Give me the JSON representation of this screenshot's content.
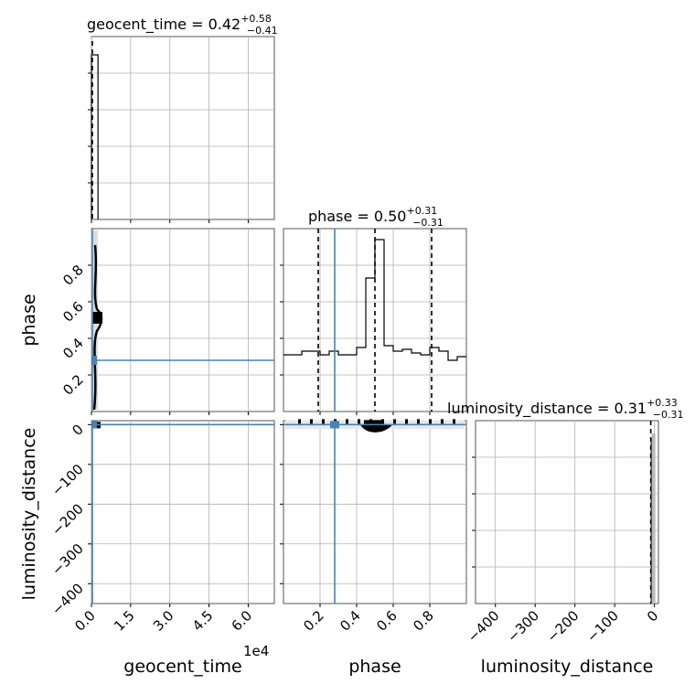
{
  "chart_data": {
    "type": "corner",
    "parameters": [
      "geocent_time",
      "phase",
      "luminosity_distance"
    ],
    "titles": {
      "geocent_time": {
        "name": "geocent_time",
        "median": "0.42",
        "plus": "+0.58",
        "minus": "−0.41"
      },
      "phase": {
        "name": "phase",
        "median": "0.50",
        "plus": "+0.31",
        "minus": "−0.31"
      },
      "luminosity_distance": {
        "name": "luminosity_distance",
        "median": "0.31",
        "plus": "+0.33",
        "minus": "−0.31"
      }
    },
    "truths": {
      "geocent_time": 0,
      "phase": 0.28,
      "luminosity_distance": 0
    },
    "axes": {
      "geocent_time": {
        "label": "geocent_time",
        "lim": [
          0,
          70000
        ],
        "ticks": [
          0,
          15000,
          30000,
          45000,
          60000
        ],
        "tick_labels": [
          "0.0",
          "1.5",
          "3.0",
          "4.5",
          "6.0"
        ],
        "offset_label": "1e4"
      },
      "phase": {
        "label": "phase",
        "lim": [
          0,
          1
        ],
        "ticks": [
          0.2,
          0.4,
          0.6,
          0.8
        ],
        "tick_labels": [
          "0.2",
          "0.4",
          "0.6",
          "0.8"
        ]
      },
      "luminosity_distance": {
        "label": "luminosity_distance",
        "lim": [
          -450,
          10
        ],
        "ticks": [
          -400,
          -300,
          -200,
          -100,
          0
        ],
        "tick_labels": [
          "−400",
          "−300",
          "−200",
          "−100",
          "0"
        ]
      }
    },
    "hist_phase": {
      "bin_edges": [
        0,
        0.05,
        0.1,
        0.15,
        0.2,
        0.25,
        0.3,
        0.35,
        0.4,
        0.45,
        0.5,
        0.55,
        0.6,
        0.65,
        0.7,
        0.75,
        0.8,
        0.85,
        0.9,
        0.95,
        1.0
      ],
      "counts": [
        0.31,
        0.31,
        0.33,
        0.33,
        0.31,
        0.33,
        0.31,
        0.31,
        0.35,
        0.73,
        0.94,
        0.36,
        0.33,
        0.34,
        0.32,
        0.31,
        0.35,
        0.33,
        0.28,
        0.3
      ],
      "quantiles": [
        0.19,
        0.5,
        0.81
      ]
    },
    "hist_geocent_time": {
      "bin_edges": [
        0,
        2500
      ],
      "counts": [
        1.0
      ]
    },
    "hist_luminosity_distance": {
      "bin_edges": [
        -8,
        0
      ],
      "counts": [
        0.9
      ]
    },
    "grid": true
  }
}
